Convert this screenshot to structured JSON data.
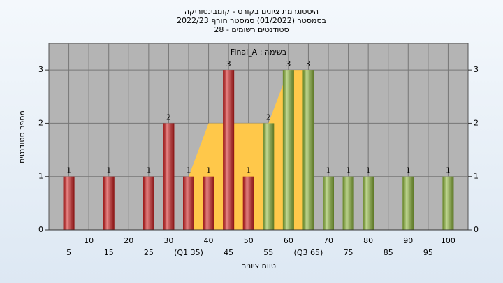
{
  "chart_data": {
    "type": "bar",
    "title": "היסטוגרמת ציונים בקורס - קומבינטוריקה",
    "subtitle": "בסמסטר  (01/2022)  סמסטר חורף 2022/23",
    "subtitle2": "סטודנטים רשומים - 28",
    "annotation": "בשימה : Final_A",
    "y_label": "מספר סטודנטים",
    "x_label": "טווח ציונים",
    "x": [
      5,
      10,
      15,
      20,
      25,
      30,
      35,
      40,
      45,
      50,
      55,
      60,
      65,
      70,
      75,
      80,
      85,
      90,
      95,
      100
    ],
    "values": [
      1,
      0,
      1,
      0,
      1,
      2,
      1,
      1,
      3,
      1,
      2,
      3,
      3,
      1,
      1,
      1,
      0,
      1,
      0,
      1
    ],
    "colors": [
      "#d42020",
      "#d42020",
      "#d42020",
      "#d42020",
      "#d42020",
      "#d42020",
      "#d42020",
      "#d42020",
      "#d42020",
      "#d42020",
      "#8fb93a",
      "#8fb93a",
      "#8fb93a",
      "#8fb93a",
      "#8fb93a",
      "#8fb93a",
      "#8fb93a",
      "#8fb93a",
      "#8fb93a",
      "#8fb93a"
    ],
    "iqr_area": {
      "color": "#ffc84a",
      "values": [
        null,
        null,
        null,
        null,
        null,
        null,
        1,
        2,
        2,
        2,
        2,
        3,
        3,
        null,
        null,
        null,
        null,
        null,
        null,
        null
      ]
    },
    "xlim": [
      0,
      105
    ],
    "xticks": [
      5,
      10,
      15,
      20,
      25,
      30,
      {
        "value": 35,
        "label": "(Q1 35)"
      },
      40,
      45,
      50,
      55,
      60,
      {
        "value": 65,
        "label": "(Q3 65)"
      },
      70,
      75,
      80,
      85,
      90,
      95,
      100
    ],
    "ylim": [
      0,
      3.5
    ],
    "yticks": [
      0,
      1,
      2,
      3
    ],
    "grid": true
  }
}
